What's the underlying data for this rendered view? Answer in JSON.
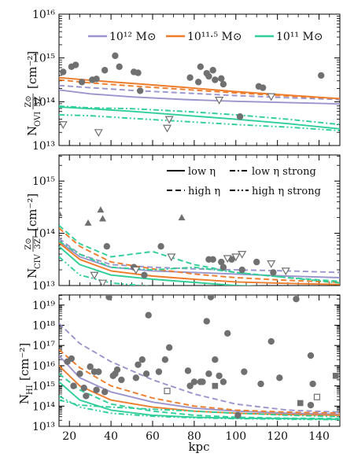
{
  "colors": {
    "m12": "#9a95cc",
    "m115": "#ee7d2b",
    "m11": "#2fcf97",
    "obs": "#707070"
  },
  "legend_mass": [
    {
      "key": "m12",
      "label": "10¹² M⊙"
    },
    {
      "key": "m115",
      "label": "10¹¹·⁵ M⊙"
    },
    {
      "key": "m11",
      "label": "10¹¹ M⊙"
    }
  ],
  "legend_style": [
    {
      "dash": "solid",
      "label": "low η"
    },
    {
      "dash": "dashdot",
      "label": "low η strong"
    },
    {
      "dash": "dashed",
      "label": "high η"
    },
    {
      "dash": "dashdotdot",
      "label": "high η strong"
    }
  ],
  "chart_data": [
    {
      "type": "line",
      "panel": "OVI",
      "ylabel": "N_OVI (Z⊙/3Z) [cm⁻²]",
      "ylabel_parts": {
        "symbol": "N",
        "sub": "OVI",
        "frac_num": "Z⊙",
        "frac_den": "3Z",
        "unit": "[cm⁻²]"
      },
      "ylim_log10": [
        13,
        16
      ],
      "yticks": [
        {
          "v": 13,
          "label": "10¹³"
        },
        {
          "v": 14,
          "label": "10¹⁴"
        },
        {
          "v": 15,
          "label": "10¹⁵"
        },
        {
          "v": 16,
          "label": "10¹⁶"
        }
      ],
      "xlim": [
        15,
        150
      ],
      "series": [
        {
          "mass": "m12",
          "dash": "solid",
          "x": [
            15,
            30,
            50,
            75,
            100,
            125,
            150
          ],
          "log_y": [
            14.27,
            14.18,
            14.11,
            14.05,
            14.01,
            13.98,
            13.95
          ]
        },
        {
          "mass": "m12",
          "dash": "dashed",
          "x": [
            15,
            30,
            50,
            75,
            100,
            125,
            150
          ],
          "log_y": [
            14.37,
            14.32,
            14.26,
            14.2,
            14.14,
            14.09,
            14.05
          ]
        },
        {
          "mass": "m115",
          "dash": "solid",
          "x": [
            15,
            30,
            50,
            75,
            100,
            125,
            150
          ],
          "log_y": [
            14.55,
            14.49,
            14.42,
            14.33,
            14.23,
            14.15,
            14.07
          ]
        },
        {
          "mass": "m115",
          "dash": "dashed",
          "x": [
            15,
            30,
            50,
            75,
            100,
            125,
            150
          ],
          "log_y": [
            14.5,
            14.43,
            14.36,
            14.28,
            14.2,
            14.13,
            14.07
          ]
        },
        {
          "mass": "m11",
          "dash": "solid",
          "x": [
            15,
            30,
            50,
            75,
            100,
            125,
            150
          ],
          "log_y": [
            13.88,
            13.84,
            13.78,
            13.69,
            13.6,
            13.5,
            13.38
          ]
        },
        {
          "mass": "m11",
          "dash": "dashdot",
          "x": [
            15,
            30,
            50,
            75,
            100,
            125,
            150
          ],
          "log_y": [
            13.9,
            13.86,
            13.84,
            13.78,
            13.7,
            13.6,
            13.48
          ]
        },
        {
          "mass": "m11",
          "dash": "dashdotdot",
          "x": [
            15,
            30,
            50,
            75,
            100,
            125,
            150
          ],
          "log_y": [
            13.7,
            13.68,
            13.62,
            13.55,
            13.48,
            13.42,
            13.34
          ]
        }
      ],
      "observations": {
        "circles": [
          [
            17,
            14.68
          ],
          [
            21,
            14.8
          ],
          [
            23,
            14.84
          ],
          [
            26,
            14.45
          ],
          [
            31,
            14.5
          ],
          [
            33,
            14.52
          ],
          [
            37,
            14.72
          ],
          [
            42,
            15.05
          ],
          [
            44,
            14.8
          ],
          [
            51,
            14.68
          ],
          [
            53,
            14.66
          ],
          [
            54,
            14.25
          ],
          [
            78,
            14.55
          ],
          [
            82,
            14.45
          ],
          [
            83,
            14.8
          ],
          [
            86,
            14.65
          ],
          [
            87,
            14.58
          ],
          [
            89,
            14.72
          ],
          [
            90,
            14.5
          ],
          [
            93,
            14.53
          ],
          [
            94,
            14.4
          ],
          [
            102,
            13.66
          ],
          [
            111,
            14.35
          ],
          [
            113,
            14.32
          ],
          [
            141,
            14.6
          ]
        ],
        "triangles_down": [
          [
            17,
            13.48
          ],
          [
            34,
            13.3
          ],
          [
            67,
            13.4
          ],
          [
            68,
            13.6
          ],
          [
            92,
            14.04
          ],
          [
            117,
            14.12
          ]
        ]
      }
    },
    {
      "type": "line",
      "panel": "CIV",
      "ylabel": "N_CIV (Z⊙/3Z) [cm⁻²]",
      "ylabel_parts": {
        "symbol": "N",
        "sub": "CIV",
        "frac_num": "Z⊙",
        "frac_den": "3Z",
        "unit": "[cm⁻²]"
      },
      "ylim_log10": [
        13,
        15.5
      ],
      "yticks": [
        {
          "v": 13,
          "label": "10¹³"
        },
        {
          "v": 14,
          "label": "10¹⁴"
        },
        {
          "v": 15,
          "label": "10¹⁵"
        }
      ],
      "xlim": [
        15,
        150
      ],
      "series": [
        {
          "mass": "m12",
          "dash": "solid",
          "x": [
            15,
            25,
            40,
            60,
            80,
            100,
            125,
            150
          ],
          "log_y": [
            13.85,
            13.55,
            13.35,
            13.28,
            13.25,
            13.22,
            13.18,
            13.15
          ]
        },
        {
          "mass": "m12",
          "dash": "dashed",
          "x": [
            15,
            25,
            40,
            60,
            80,
            100,
            125,
            150
          ],
          "log_y": [
            13.9,
            13.6,
            13.4,
            13.35,
            13.32,
            13.3,
            13.28,
            13.25
          ]
        },
        {
          "mass": "m115",
          "dash": "solid",
          "x": [
            15,
            25,
            40,
            60,
            80,
            100,
            125,
            150
          ],
          "log_y": [
            13.82,
            13.5,
            13.28,
            13.18,
            13.12,
            13.07,
            13.04,
            13.02
          ]
        },
        {
          "mass": "m115",
          "dash": "dashed",
          "x": [
            15,
            25,
            40,
            60,
            80,
            100,
            125,
            150
          ],
          "log_y": [
            14.1,
            13.75,
            13.45,
            13.32,
            13.22,
            13.15,
            13.1,
            13.06
          ]
        },
        {
          "mass": "m11",
          "dash": "solid",
          "x": [
            15,
            25,
            40,
            60,
            80,
            100,
            125,
            150
          ],
          "log_y": [
            13.75,
            13.4,
            13.2,
            13.12,
            13.06,
            13.0,
            12.97,
            12.94
          ]
        },
        {
          "mass": "m11",
          "dash": "dashed",
          "x": [
            15,
            25,
            40,
            60,
            80,
            100,
            125,
            150
          ],
          "log_y": [
            14.15,
            13.8,
            13.55,
            13.65,
            13.4,
            13.25,
            13.15,
            13.08
          ]
        },
        {
          "mass": "m11",
          "dash": "dashdot",
          "x": [
            15,
            25,
            40,
            60,
            80,
            100,
            125,
            150
          ],
          "log_y": [
            13.85,
            13.6,
            13.35,
            13.3,
            13.35,
            13.25,
            13.15,
            13.05
          ]
        },
        {
          "mass": "m11",
          "dash": "dashdotdot",
          "x": [
            15,
            25,
            40,
            60,
            80,
            100,
            125,
            150
          ],
          "log_y": [
            13.55,
            13.2,
            13.05,
            12.98,
            12.95,
            12.93,
            12.92,
            12.91
          ]
        }
      ],
      "observations": {
        "circles": [
          [
            38,
            13.75
          ],
          [
            51,
            13.35
          ],
          [
            56,
            13.2
          ],
          [
            64,
            13.75
          ],
          [
            87,
            13.5
          ],
          [
            89,
            13.5
          ],
          [
            93,
            13.45
          ],
          [
            94,
            13.35
          ],
          [
            98,
            13.5
          ],
          [
            103,
            13.3
          ],
          [
            110,
            13.45
          ],
          [
            118,
            13.25
          ]
        ],
        "triangles_up": [
          [
            15,
            14.38
          ],
          [
            29,
            14.2
          ],
          [
            35,
            14.45
          ],
          [
            36,
            14.28
          ],
          [
            74,
            14.3
          ]
        ],
        "triangles_down": [
          [
            32,
            13.2
          ],
          [
            36,
            13.05
          ],
          [
            52,
            13.3
          ],
          [
            69,
            13.55
          ],
          [
            96,
            13.52
          ],
          [
            100,
            13.55
          ],
          [
            103,
            13.6
          ],
          [
            117,
            13.42
          ],
          [
            124,
            13.28
          ]
        ]
      }
    },
    {
      "type": "line",
      "panel": "HI",
      "ylabel": "N_HI [cm⁻²]",
      "ylabel_parts": {
        "symbol": "N",
        "sub": "HI",
        "unit": "[cm⁻²]"
      },
      "xlabel": "kpc",
      "ylim_log10": [
        13,
        19.5
      ],
      "yticks": [
        {
          "v": 13,
          "label": "10¹³"
        },
        {
          "v": 14,
          "label": "10¹⁴"
        },
        {
          "v": 15,
          "label": "10¹⁵"
        },
        {
          "v": 16,
          "label": "10¹⁶"
        },
        {
          "v": 17,
          "label": "10¹⁷"
        },
        {
          "v": 18,
          "label": "10¹⁸"
        },
        {
          "v": 19,
          "label": "10¹⁹"
        }
      ],
      "xticks": [
        20,
        40,
        60,
        80,
        100,
        120,
        140
      ],
      "xlim": [
        15,
        150
      ],
      "series": [
        {
          "mass": "m12",
          "dash": "solid",
          "x": [
            15,
            25,
            40,
            60,
            80,
            100,
            125,
            150
          ],
          "log_y": [
            16.5,
            15.4,
            14.7,
            14.2,
            13.9,
            13.75,
            13.65,
            13.6
          ]
        },
        {
          "mass": "m12",
          "dash": "dashed",
          "x": [
            15,
            25,
            40,
            60,
            80,
            100,
            125,
            150
          ],
          "log_y": [
            18.1,
            17.1,
            16.2,
            15.3,
            14.6,
            14.1,
            13.8,
            13.7
          ]
        },
        {
          "mass": "m115",
          "dash": "solid",
          "x": [
            15,
            25,
            40,
            60,
            80,
            100,
            125,
            150
          ],
          "log_y": [
            16.0,
            15.0,
            14.3,
            13.95,
            13.75,
            13.65,
            13.58,
            13.55
          ]
        },
        {
          "mass": "m115",
          "dash": "dashed",
          "x": [
            15,
            25,
            40,
            60,
            80,
            100,
            125,
            150
          ],
          "log_y": [
            16.8,
            15.9,
            15.0,
            14.4,
            14.0,
            13.8,
            13.7,
            13.65
          ]
        },
        {
          "mass": "m11",
          "dash": "solid",
          "x": [
            15,
            25,
            40,
            60,
            80,
            100,
            125,
            150
          ],
          "log_y": [
            15.2,
            14.3,
            13.8,
            13.55,
            13.45,
            13.4,
            13.38,
            13.35
          ]
        },
        {
          "mass": "m11",
          "dash": "dashed",
          "x": [
            15,
            25,
            40,
            60,
            80,
            100,
            125,
            150
          ],
          "log_y": [
            15.6,
            14.8,
            14.1,
            13.75,
            13.55,
            13.45,
            13.4,
            13.38
          ]
        },
        {
          "mass": "m11",
          "dash": "dashdot",
          "x": [
            15,
            25,
            40,
            60,
            80,
            100,
            125,
            150
          ],
          "log_y": [
            14.3,
            14.05,
            13.95,
            13.85,
            13.75,
            13.65,
            13.55,
            13.48
          ]
        },
        {
          "mass": "m11",
          "dash": "dashdotdot",
          "x": [
            15,
            25,
            40,
            60,
            80,
            100,
            125,
            150
          ],
          "log_y": [
            14.5,
            13.95,
            13.65,
            13.5,
            13.42,
            13.38,
            13.35,
            13.33
          ]
        }
      ],
      "observations": {
        "circles": [
          [
            19,
            16.2
          ],
          [
            21,
            16.35
          ],
          [
            22,
            15.0
          ],
          [
            25,
            15.6
          ],
          [
            27,
            14.9
          ],
          [
            28,
            14.5
          ],
          [
            30,
            15.95
          ],
          [
            32,
            15.7
          ],
          [
            33,
            14.8
          ],
          [
            34,
            15.7
          ],
          [
            37,
            14.7
          ],
          [
            39,
            19.4
          ],
          [
            41,
            15.5
          ],
          [
            42,
            15.6
          ],
          [
            43,
            15.8
          ],
          [
            45,
            15.3
          ],
          [
            52,
            15.4
          ],
          [
            53,
            16.05
          ],
          [
            55,
            16.3
          ],
          [
            57,
            15.6
          ],
          [
            58,
            18.5
          ],
          [
            63,
            15.7
          ],
          [
            66,
            16.3
          ],
          [
            68,
            16.9
          ],
          [
            77,
            15.75
          ],
          [
            78,
            15.0
          ],
          [
            80,
            15.2
          ],
          [
            83,
            15.2
          ],
          [
            84,
            15.2
          ],
          [
            86,
            18.2
          ],
          [
            87,
            15.6
          ],
          [
            88,
            19.4
          ],
          [
            90,
            16.3
          ],
          [
            92,
            15.5
          ],
          [
            94,
            15.2
          ],
          [
            96,
            17.6
          ],
          [
            101,
            13.55
          ],
          [
            104,
            15.7
          ],
          [
            112,
            15.1
          ],
          [
            117,
            17.2
          ],
          [
            121,
            15.4
          ],
          [
            129,
            19.3
          ],
          [
            136,
            16.5
          ],
          [
            136,
            14.05
          ],
          [
            137,
            15.1
          ]
        ],
        "squares": [
          [
            90,
            15.0
          ],
          [
            131,
            14.15
          ],
          [
            148,
            15.5
          ]
        ],
        "open_squares": [
          [
            67,
            14.75
          ],
          [
            139,
            14.45
          ]
        ]
      }
    }
  ]
}
